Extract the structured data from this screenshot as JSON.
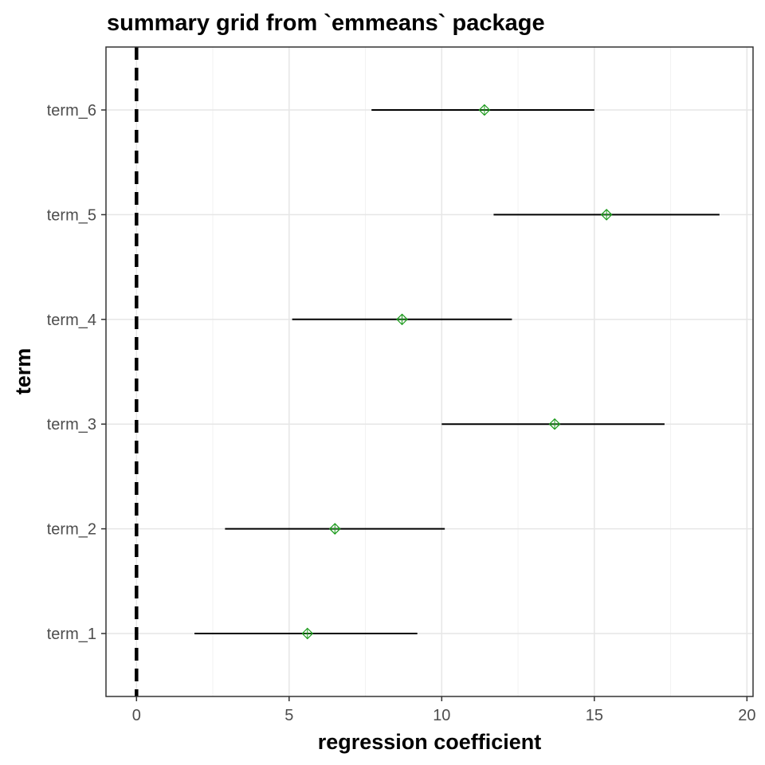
{
  "chart_data": {
    "type": "forest",
    "title": "summary grid from `emmeans` package",
    "xlabel": "regression coefficient",
    "ylabel": "term",
    "xlim": [
      -1,
      20.2
    ],
    "x_ticks": [
      0,
      5,
      10,
      15,
      20
    ],
    "x_tick_labels": [
      "0",
      "5",
      "10",
      "15",
      "20"
    ],
    "reference_line": 0,
    "grid": true,
    "terms": [
      "term_1",
      "term_2",
      "term_3",
      "term_4",
      "term_5",
      "term_6"
    ],
    "estimates": [
      5.6,
      6.5,
      13.7,
      8.7,
      15.4,
      11.4
    ],
    "lower": [
      1.9,
      2.9,
      10.0,
      5.1,
      11.7,
      7.7
    ],
    "upper": [
      9.2,
      10.1,
      17.3,
      12.3,
      19.1,
      15.0
    ],
    "point_color": "#1a9a1a",
    "line_color": "#000000"
  }
}
